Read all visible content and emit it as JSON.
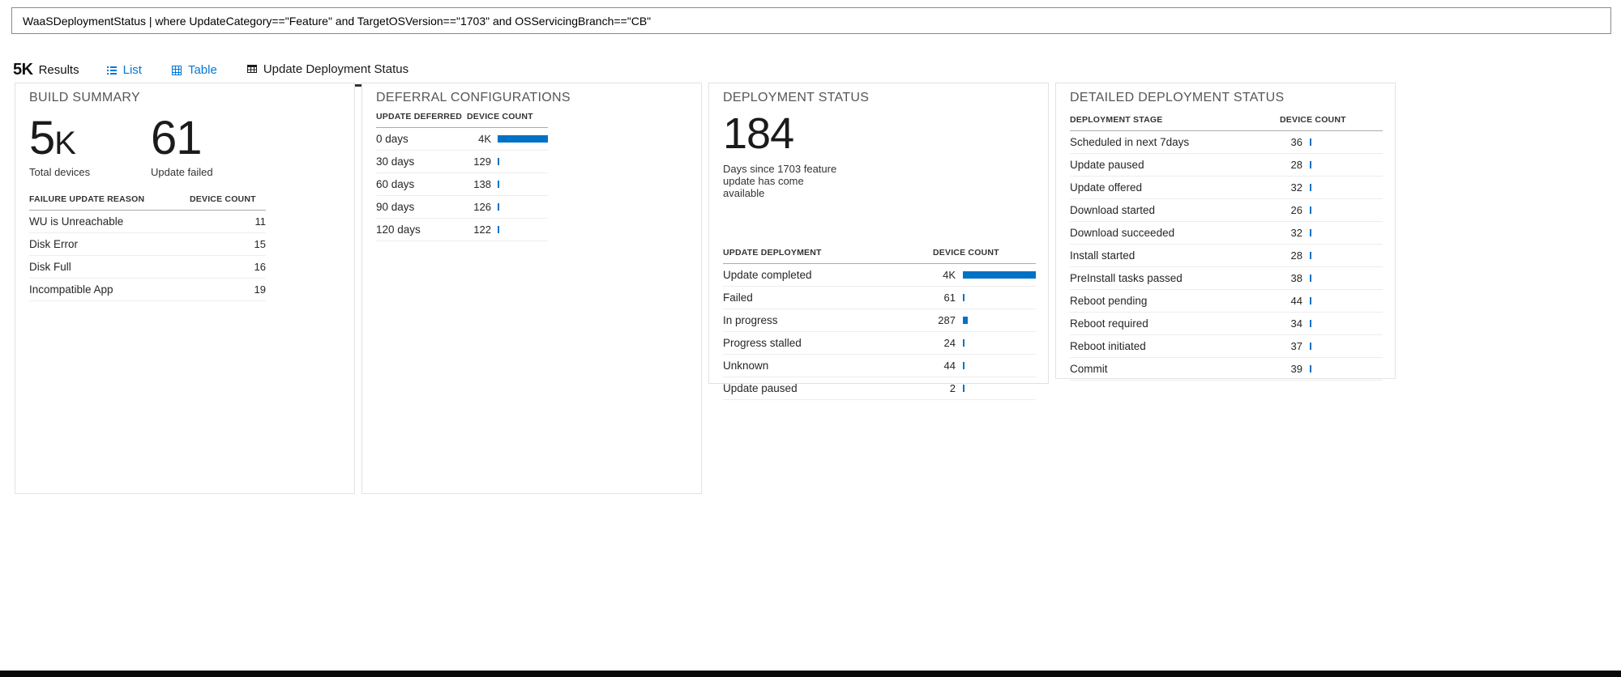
{
  "app": {
    "accent_color": "#0078d4",
    "bar_color": "#0072c6"
  },
  "query_bar": {
    "text": "WaaSDeploymentStatus | where UpdateCategory==\"Feature\" and TargetOSVersion==\"1703\" and OSServicingBranch==\"CB\""
  },
  "results_bar": {
    "count": "5K",
    "results_label": "Results",
    "tabs": [
      {
        "label": "List",
        "icon": "list-icon",
        "active": false
      },
      {
        "label": "Table",
        "icon": "table-icon",
        "active": false
      },
      {
        "label": "Update Deployment Status",
        "icon": "status-grid-icon",
        "active": true
      }
    ]
  },
  "build_summary": {
    "title": "BUILD SUMMARY",
    "metrics": [
      {
        "value": "5",
        "suffix": "K",
        "label": "Total devices"
      },
      {
        "value": "61",
        "suffix": "",
        "label": "Update failed"
      }
    ],
    "headers": {
      "col1": "FAILURE UPDATE REASON",
      "col2": "DEVICE COUNT"
    },
    "rows": [
      {
        "label": "WU is Unreachable",
        "value": "11"
      },
      {
        "label": "Disk Error",
        "value": "15"
      },
      {
        "label": "Disk Full",
        "value": "16"
      },
      {
        "label": "Incompatible App",
        "value": "19"
      }
    ]
  },
  "deferral": {
    "title": "DEFERRAL CONFIGURATIONS",
    "headers": {
      "col1": "UPDATE DEFERRED",
      "col2": "DEVICE COUNT"
    },
    "bar_max": 4000,
    "rows": [
      {
        "label": "0 days",
        "value": "4K",
        "num": 4000
      },
      {
        "label": "30 days",
        "value": "129",
        "num": 129
      },
      {
        "label": "60 days",
        "value": "138",
        "num": 138
      },
      {
        "label": "90 days",
        "value": "126",
        "num": 126
      },
      {
        "label": "120 days",
        "value": "122",
        "num": 122
      }
    ]
  },
  "deployment": {
    "title": "DEPLOYMENT STATUS",
    "metric": {
      "value": "184",
      "label": "Days since 1703 feature update has come available"
    },
    "headers": {
      "col1": "UPDATE DEPLOYMENT",
      "col2": "DEVICE COUNT"
    },
    "bar_max": 4000,
    "rows": [
      {
        "label": "Update completed",
        "value": "4K",
        "num": 4000
      },
      {
        "label": "Failed",
        "value": "61",
        "num": 61
      },
      {
        "label": "In progress",
        "value": "287",
        "num": 287
      },
      {
        "label": "Progress stalled",
        "value": "24",
        "num": 24
      },
      {
        "label": "Unknown",
        "value": "44",
        "num": 44
      },
      {
        "label": "Update paused",
        "value": "2",
        "num": 2
      }
    ]
  },
  "detailed": {
    "title": "DETAILED DEPLOYMENT STATUS",
    "headers": {
      "col1": "DEPLOYMENT STAGE",
      "col2": "DEVICE COUNT"
    },
    "bar_max": 4000,
    "rows": [
      {
        "label": "Scheduled in next 7days",
        "value": "36",
        "num": 36
      },
      {
        "label": "Update paused",
        "value": "28",
        "num": 28
      },
      {
        "label": "Update offered",
        "value": "32",
        "num": 32
      },
      {
        "label": "Download started",
        "value": "26",
        "num": 26
      },
      {
        "label": "Download succeeded",
        "value": "32",
        "num": 32
      },
      {
        "label": "Install started",
        "value": "28",
        "num": 28
      },
      {
        "label": "PreInstall tasks passed",
        "value": "38",
        "num": 38
      },
      {
        "label": "Reboot pending",
        "value": "44",
        "num": 44
      },
      {
        "label": "Reboot required",
        "value": "34",
        "num": 34
      },
      {
        "label": "Reboot initiated",
        "value": "37",
        "num": 37
      },
      {
        "label": "Commit",
        "value": "39",
        "num": 39
      }
    ]
  }
}
